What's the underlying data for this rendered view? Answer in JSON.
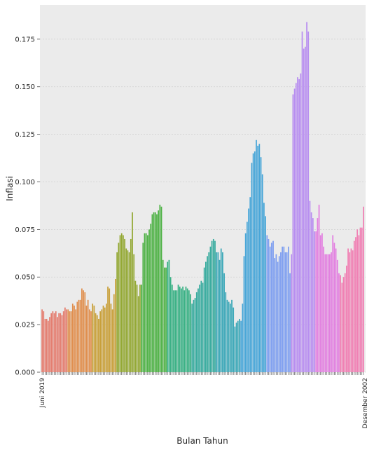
{
  "chart_data": {
    "type": "bar",
    "title": "",
    "xlabel": "Bulan Tahun",
    "ylabel": "Inflasi",
    "ylim": [
      0,
      0.193
    ],
    "yticks": [
      0.0,
      0.025,
      0.05,
      0.075,
      0.1,
      0.125,
      0.15,
      0.175
    ],
    "ytick_labels": [
      "0.000",
      "0.025",
      "0.050",
      "0.075",
      "0.100",
      "0.125",
      "0.150",
      "0.175"
    ],
    "grid": true,
    "legend": "none",
    "palette": [
      "#e47c6e",
      "#e08f4e",
      "#c8a039",
      "#93a833",
      "#4fb246",
      "#37b083",
      "#37ab9e",
      "#3ca8b8",
      "#48a6d8",
      "#7e9ff0",
      "#b88ef0",
      "#e27fe0",
      "#f07fb3"
    ],
    "first_category": "Juni 2019",
    "last_category": "Desember 2002",
    "values": [
      0.033,
      0.032,
      0.028,
      0.028,
      0.027,
      0.029,
      0.031,
      0.032,
      0.031,
      0.032,
      0.029,
      0.031,
      0.031,
      0.03,
      0.032,
      0.034,
      0.033,
      0.033,
      0.032,
      0.032,
      0.036,
      0.035,
      0.033,
      0.037,
      0.038,
      0.038,
      0.044,
      0.043,
      0.042,
      0.035,
      0.038,
      0.033,
      0.032,
      0.036,
      0.035,
      0.031,
      0.03,
      0.028,
      0.032,
      0.033,
      0.035,
      0.034,
      0.036,
      0.045,
      0.044,
      0.036,
      0.033,
      0.041,
      0.049,
      0.063,
      0.068,
      0.072,
      0.073,
      0.072,
      0.07,
      0.065,
      0.064,
      0.063,
      0.07,
      0.084,
      0.062,
      0.048,
      0.046,
      0.04,
      0.046,
      0.046,
      0.068,
      0.073,
      0.073,
      0.072,
      0.075,
      0.078,
      0.083,
      0.084,
      0.084,
      0.083,
      0.085,
      0.088,
      0.087,
      0.059,
      0.055,
      0.055,
      0.058,
      0.059,
      0.05,
      0.046,
      0.043,
      0.043,
      0.043,
      0.046,
      0.045,
      0.044,
      0.045,
      0.043,
      0.045,
      0.044,
      0.043,
      0.041,
      0.036,
      0.038,
      0.039,
      0.042,
      0.044,
      0.046,
      0.048,
      0.047,
      0.055,
      0.058,
      0.061,
      0.063,
      0.066,
      0.069,
      0.07,
      0.069,
      0.063,
      0.063,
      0.059,
      0.065,
      0.063,
      0.052,
      0.042,
      0.038,
      0.037,
      0.036,
      0.038,
      0.034,
      0.024,
      0.026,
      0.027,
      0.028,
      0.027,
      0.036,
      0.061,
      0.073,
      0.079,
      0.086,
      0.092,
      0.11,
      0.115,
      0.116,
      0.122,
      0.119,
      0.12,
      0.113,
      0.104,
      0.089,
      0.082,
      0.072,
      0.07,
      0.066,
      0.068,
      0.069,
      0.06,
      0.062,
      0.058,
      0.061,
      0.063,
      0.066,
      0.066,
      0.063,
      0.063,
      0.066,
      0.052,
      0.062,
      0.146,
      0.149,
      0.152,
      0.155,
      0.154,
      0.157,
      0.179,
      0.17,
      0.171,
      0.184,
      0.179,
      0.09,
      0.084,
      0.081,
      0.074,
      0.074,
      0.081,
      0.088,
      0.072,
      0.073,
      0.066,
      0.062,
      0.062,
      0.062,
      0.062,
      0.063,
      0.072,
      0.068,
      0.065,
      0.059,
      0.052,
      0.051,
      0.047,
      0.05,
      0.052,
      0.056,
      0.065,
      0.063,
      0.065,
      0.064,
      0.069,
      0.071,
      0.075,
      0.072,
      0.076,
      0.076,
      0.087
    ]
  }
}
